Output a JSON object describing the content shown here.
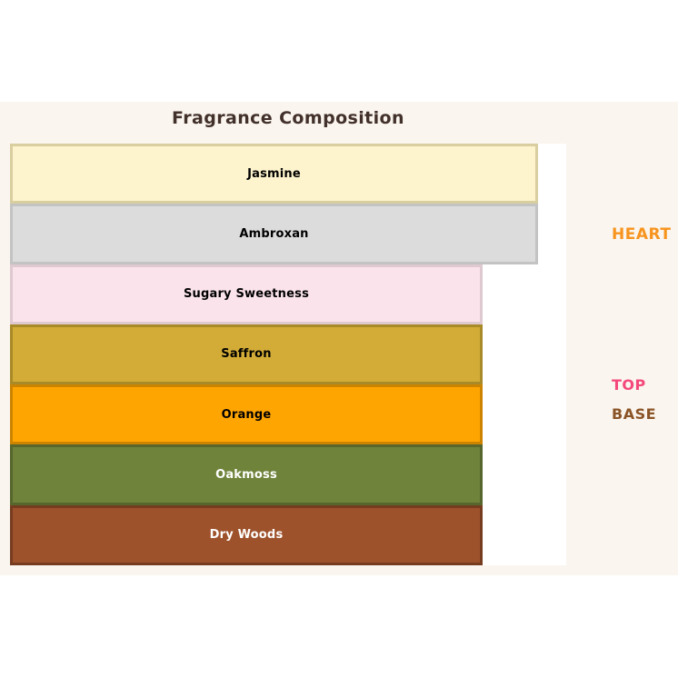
{
  "title": "Fragrance Composition",
  "colors": {
    "page_background": "#ffffff",
    "figure_background": "#FAF5EE",
    "plot_background": "#ffffff",
    "title_text": "#42302B"
  },
  "chart_data": {
    "type": "bar",
    "orientation": "horizontal",
    "title": "Fragrance Composition",
    "xlabel": "",
    "ylabel": "",
    "xlim": [
      0,
      100
    ],
    "axes_visible": false,
    "grid": false,
    "legend_position": "none",
    "values_note": "no numeric axis shown; values estimated as percent of plot width",
    "categories": [
      "Jasmine",
      "Ambroxan",
      "Sugary Sweetness",
      "Saffron",
      "Orange",
      "Oakmoss",
      "Dry Woods"
    ],
    "values": [
      95,
      95,
      85,
      85,
      85,
      85,
      85
    ],
    "bar_fill_colors": [
      "#FDF3CC",
      "#DCDCDC",
      "#FBE3EB",
      "#D3AC37",
      "#FFA502",
      "#6F833B",
      "#9E522C"
    ],
    "bar_edge_colors": [
      "#D8CE9F",
      "#C3C3C3",
      "#DFC9D1",
      "#A98A28",
      "#CC8400",
      "#56662C",
      "#763C1F"
    ],
    "bar_label_colors": [
      "#000000",
      "#000000",
      "#000000",
      "#000000",
      "#000000",
      "#FFFFFF",
      "#FFFFFF"
    ],
    "note_groups": [
      {
        "label": "HEART",
        "color": "#F7941E"
      },
      {
        "label": "TOP",
        "color": "#F4477B"
      },
      {
        "label": "BASE",
        "color": "#8A5426"
      }
    ]
  }
}
